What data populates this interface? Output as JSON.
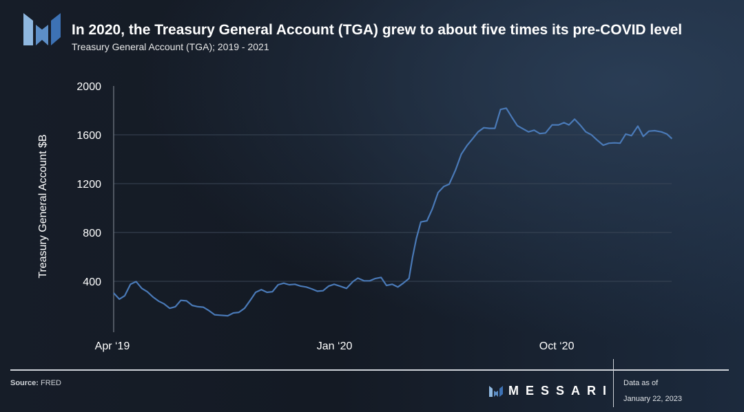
{
  "header": {
    "title": "In 2020, the Treasury General Account (TGA) grew to about five times its pre-COVID level",
    "subtitle": "Treasury General Account (TGA); 2019 - 2021"
  },
  "footer": {
    "source_label": "Source:",
    "source_value": "FRED",
    "brand": "MESSARI",
    "asof_label": "Data as of",
    "asof_date": "January 22, 2023"
  },
  "colors": {
    "line": "#4a7ab8",
    "grid": "#3a4656",
    "text": "#ffffff"
  },
  "chart_data": {
    "type": "line",
    "title": "In 2020, the Treasury General Account (TGA) grew to about five times its pre-COVID level",
    "xlabel": "",
    "ylabel": "Treasury General Account $B",
    "x_unit": "months since Apr 2019",
    "xlim": [
      0,
      22.6
    ],
    "ylim": [
      0,
      2000
    ],
    "yticks": [
      400,
      800,
      1200,
      1600,
      2000
    ],
    "xticks": [
      {
        "x": 0,
        "label": "Apr ‘19"
      },
      {
        "x": 9,
        "label": "Jan ‘20"
      },
      {
        "x": 18,
        "label": "Oct ‘20"
      }
    ],
    "grid": true,
    "series": [
      {
        "name": "TGA",
        "x": [
          0,
          0.23,
          0.45,
          0.68,
          0.91,
          1.14,
          1.36,
          1.59,
          1.82,
          2.04,
          2.27,
          2.5,
          2.72,
          2.95,
          3.18,
          3.41,
          3.63,
          3.86,
          4.09,
          4.31,
          4.62,
          4.85,
          5.07,
          5.3,
          5.53,
          5.75,
          5.98,
          6.21,
          6.43,
          6.66,
          6.89,
          7.11,
          7.34,
          7.57,
          7.8,
          8.02,
          8.25,
          8.48,
          8.71,
          8.93,
          9.16,
          9.43,
          9.69,
          9.89,
          10.14,
          10.37,
          10.6,
          10.83,
          11.05,
          11.28,
          11.51,
          11.73,
          11.96,
          12.11,
          12.26,
          12.44,
          12.69,
          12.91,
          13.14,
          13.37,
          13.59,
          13.85,
          14.08,
          14.31,
          14.54,
          14.76,
          14.99,
          15.22,
          15.44,
          15.67,
          15.9,
          16.12,
          16.35,
          16.58,
          16.8,
          17.03,
          17.26,
          17.49,
          17.76,
          18.02,
          18.24,
          18.44,
          18.67,
          18.89,
          19.12,
          19.35,
          19.57,
          19.83,
          20.06,
          20.29,
          20.51,
          20.74,
          20.97,
          21.23,
          21.45,
          21.68,
          21.91,
          22.18,
          22.41,
          22.61
        ],
        "values": [
          304,
          254,
          282,
          376,
          398,
          342,
          315,
          272,
          238,
          216,
          179,
          192,
          244,
          240,
          203,
          192,
          188,
          160,
          126,
          122,
          118,
          141,
          146,
          179,
          244,
          310,
          332,
          310,
          315,
          372,
          385,
          372,
          376,
          361,
          353,
          338,
          319,
          323,
          361,
          376,
          361,
          342,
          398,
          426,
          404,
          404,
          423,
          432,
          366,
          376,
          353,
          385,
          423,
          601,
          751,
          886,
          896,
          995,
          1127,
          1177,
          1196,
          1314,
          1441,
          1512,
          1568,
          1624,
          1658,
          1653,
          1653,
          1808,
          1818,
          1746,
          1675,
          1649,
          1624,
          1638,
          1610,
          1615,
          1681,
          1681,
          1700,
          1681,
          1728,
          1681,
          1624,
          1600,
          1559,
          1515,
          1531,
          1534,
          1531,
          1606,
          1593,
          1671,
          1587,
          1630,
          1634,
          1624,
          1606,
          1568
        ]
      }
    ]
  }
}
